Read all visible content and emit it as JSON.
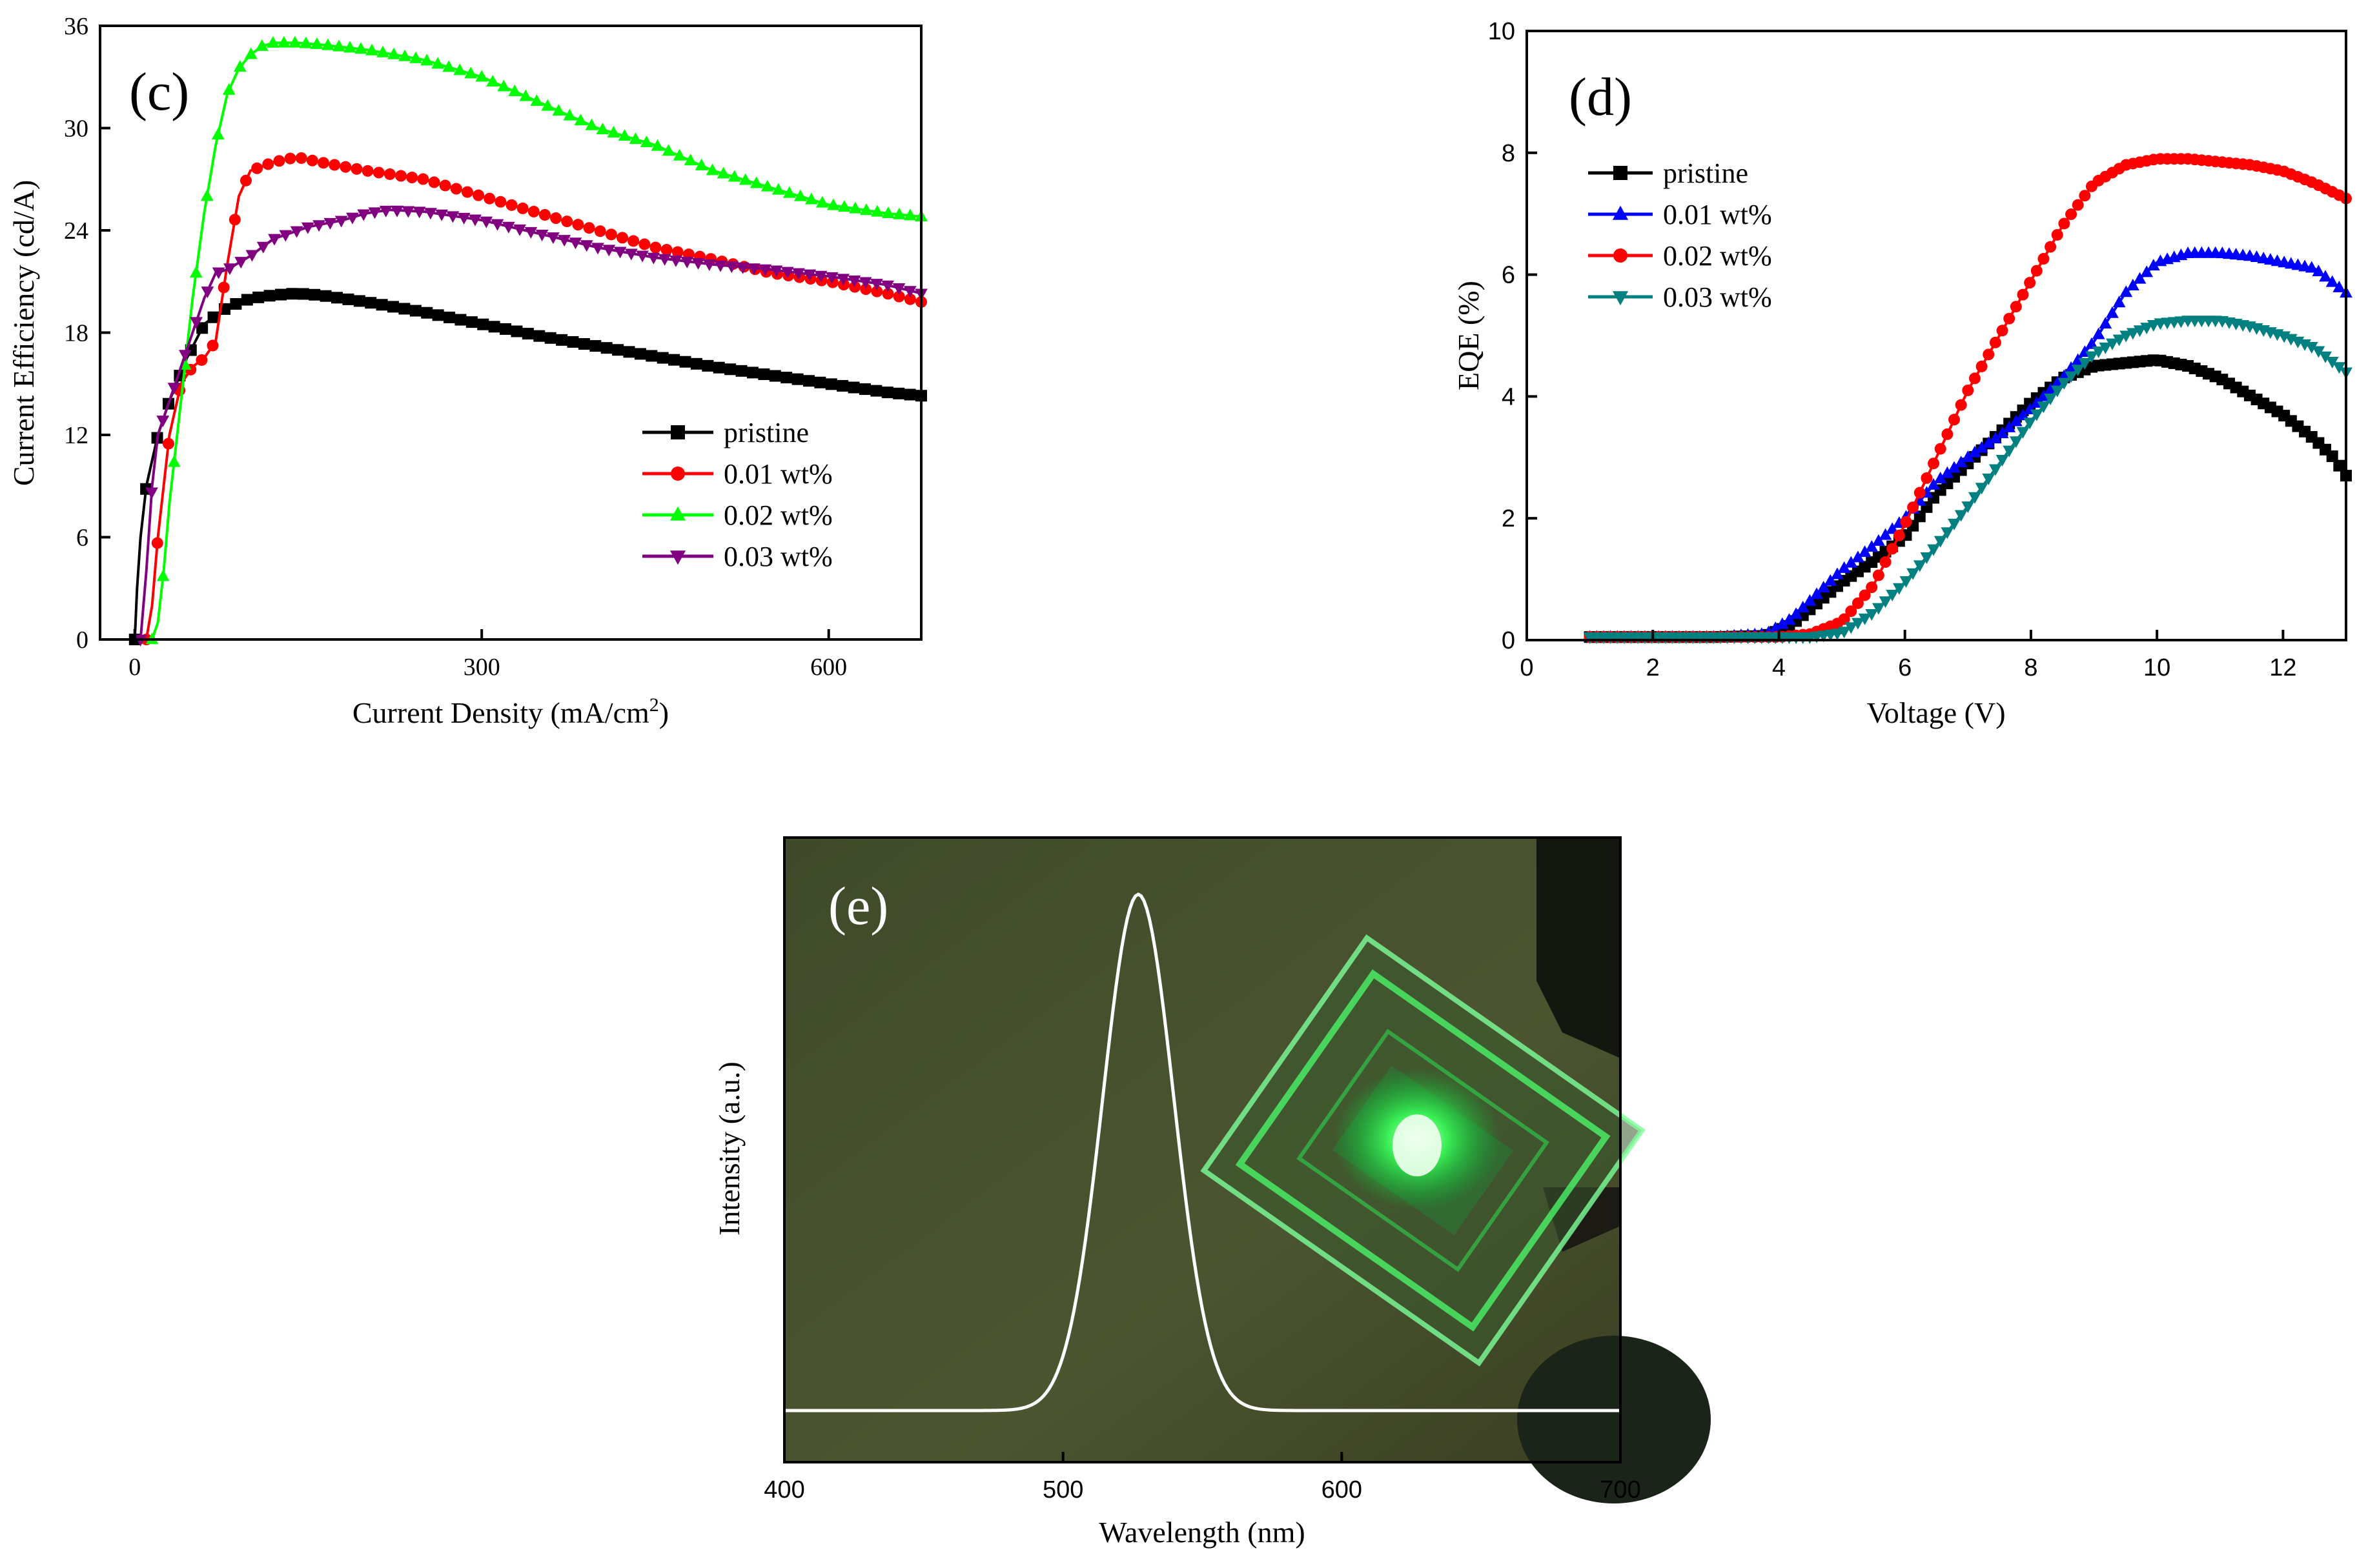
{
  "chart_data": [
    {
      "panel": "(c)",
      "type": "line",
      "title": "",
      "xlabel": "Current Density (mA/cm",
      "xlabel_sup": "2",
      "xlabel_end": ")",
      "ylabel": "Current Efficiency (cd/A)",
      "xlim": [
        -30,
        680
      ],
      "ylim": [
        0,
        36
      ],
      "xticks": [
        0,
        300,
        600
      ],
      "yticks": [
        0,
        6,
        12,
        18,
        24,
        30,
        36
      ],
      "legend_position": "center-right",
      "series": [
        {
          "name": "pristine",
          "color": "#000000",
          "marker": "square",
          "x": [
            0,
            2,
            5,
            10,
            15,
            20,
            30,
            45,
            60,
            80,
            100,
            120,
            140,
            160,
            180,
            200,
            250,
            300,
            350,
            400,
            450,
            500,
            550,
            600,
            650,
            680
          ],
          "y": [
            0,
            3,
            6,
            9,
            10.5,
            12,
            14,
            16.5,
            18.5,
            19.5,
            20,
            20.2,
            20.3,
            20.2,
            20,
            19.8,
            19.2,
            18.5,
            17.8,
            17.2,
            16.6,
            16,
            15.5,
            15,
            14.5,
            14.3
          ]
        },
        {
          "name": "0.01 wt%",
          "color": "#ff0000",
          "marker": "circle",
          "x": [
            10,
            15,
            20,
            25,
            30,
            40,
            50,
            60,
            70,
            80,
            90,
            100,
            120,
            140,
            160,
            200,
            250,
            300,
            350,
            400,
            450,
            500,
            550,
            600,
            650,
            680
          ],
          "y": [
            0,
            2,
            6,
            9,
            12,
            15,
            16,
            16.5,
            17.5,
            22,
            26,
            27.5,
            28,
            28.3,
            28,
            27.5,
            27,
            26,
            25,
            24,
            23,
            22.3,
            21.5,
            21,
            20.3,
            19.8
          ]
        },
        {
          "name": "0.02 wt%",
          "color": "#00ff00",
          "marker": "triangle-up",
          "x": [
            15,
            20,
            25,
            30,
            40,
            50,
            60,
            70,
            80,
            90,
            100,
            110,
            120,
            140,
            160,
            200,
            250,
            300,
            350,
            400,
            450,
            500,
            550,
            600,
            650,
            680
          ],
          "y": [
            0,
            1,
            4,
            8,
            14,
            20,
            25,
            29,
            32,
            33.5,
            34.3,
            34.8,
            35,
            35,
            34.9,
            34.6,
            34,
            33,
            31.5,
            30,
            29,
            27.5,
            26.5,
            25.5,
            25,
            24.8
          ]
        },
        {
          "name": "0.03 wt%",
          "color": "#800080",
          "marker": "triangle-down",
          "x": [
            5,
            10,
            15,
            20,
            30,
            40,
            50,
            60,
            70,
            80,
            100,
            120,
            150,
            180,
            200,
            220,
            250,
            300,
            350,
            400,
            450,
            500,
            550,
            600,
            650,
            680
          ],
          "y": [
            0,
            4,
            9,
            12,
            14,
            16,
            18,
            20,
            21.5,
            21.7,
            22.5,
            23.5,
            24.2,
            24.6,
            25,
            25.2,
            25.1,
            24.6,
            23.8,
            23,
            22.4,
            22,
            21.7,
            21.3,
            20.8,
            20.3
          ]
        }
      ]
    },
    {
      "panel": "(d)",
      "type": "line",
      "title": "",
      "xlabel": "Voltage (V)",
      "ylabel": "EQE (%)",
      "xlim": [
        0,
        13
      ],
      "ylim": [
        0,
        10
      ],
      "xticks": [
        0,
        2,
        4,
        6,
        8,
        10,
        12
      ],
      "yticks": [
        0,
        2,
        4,
        6,
        8,
        10
      ],
      "legend_position": "upper-left",
      "series": [
        {
          "name": "pristine",
          "color": "#000000",
          "marker": "square",
          "x": [
            1,
            2,
            3,
            3.8,
            4.2,
            4.6,
            5,
            5.5,
            6,
            6.5,
            7,
            7.5,
            8,
            8.5,
            9,
            9.5,
            10,
            10.5,
            11,
            11.5,
            12,
            12.5,
            12.8,
            13
          ],
          "y": [
            0.05,
            0.05,
            0.05,
            0.07,
            0.25,
            0.6,
            0.95,
            1.3,
            1.7,
            2.4,
            2.9,
            3.4,
            3.9,
            4.3,
            4.5,
            4.55,
            4.6,
            4.5,
            4.3,
            4.0,
            3.7,
            3.3,
            3.0,
            2.7
          ]
        },
        {
          "name": "0.01 wt%",
          "color": "#0000ff",
          "marker": "triangle-up",
          "x": [
            1,
            2,
            3,
            3.8,
            4.2,
            4.6,
            5,
            5.5,
            6,
            6.5,
            7,
            7.5,
            8,
            8.5,
            9,
            9.5,
            10,
            10.5,
            11,
            11.5,
            12,
            12.5,
            13
          ],
          "y": [
            0.05,
            0.05,
            0.05,
            0.1,
            0.35,
            0.75,
            1.15,
            1.55,
            2.0,
            2.6,
            3.0,
            3.35,
            3.8,
            4.3,
            4.9,
            5.7,
            6.2,
            6.35,
            6.35,
            6.3,
            6.2,
            6.1,
            5.7
          ]
        },
        {
          "name": "0.02 wt%",
          "color": "#ff0000",
          "marker": "circle",
          "x": [
            1,
            2,
            3,
            4,
            4.5,
            5,
            5.5,
            6,
            6.5,
            7,
            7.5,
            8,
            8.5,
            9,
            9.5,
            10,
            10.5,
            11,
            11.5,
            12,
            12.5,
            13
          ],
          "y": [
            0.05,
            0.05,
            0.05,
            0.05,
            0.1,
            0.3,
            0.9,
            1.9,
            3.0,
            4.1,
            5.0,
            5.9,
            6.8,
            7.5,
            7.8,
            7.9,
            7.9,
            7.85,
            7.8,
            7.7,
            7.5,
            7.25
          ]
        },
        {
          "name": "0.03 wt%",
          "color": "#008080",
          "marker": "triangle-down",
          "x": [
            1,
            2,
            3,
            4,
            4.5,
            5,
            5.5,
            6,
            6.5,
            7,
            7.5,
            8,
            8.5,
            9,
            9.5,
            10,
            10.5,
            11,
            11.5,
            12,
            12.5,
            13
          ],
          "y": [
            0.05,
            0.05,
            0.05,
            0.05,
            0.05,
            0.12,
            0.45,
            0.95,
            1.55,
            2.2,
            2.9,
            3.6,
            4.2,
            4.7,
            5.0,
            5.2,
            5.25,
            5.25,
            5.15,
            5.0,
            4.8,
            4.4
          ]
        }
      ]
    },
    {
      "panel": "(e)",
      "type": "line",
      "title": "",
      "xlabel": "Wavelength (nm)",
      "ylabel": "Intensity (a.u.)",
      "xlim": [
        400,
        700
      ],
      "ylim": [
        0,
        1
      ],
      "xticks": [
        400,
        500,
        600,
        700
      ],
      "yticks": [],
      "peak_nm": 527,
      "fwhm_nm": 30,
      "background": "photo of green-emitting device",
      "series": [
        {
          "name": "EL spectrum",
          "color": "#ffffff"
        }
      ]
    }
  ]
}
